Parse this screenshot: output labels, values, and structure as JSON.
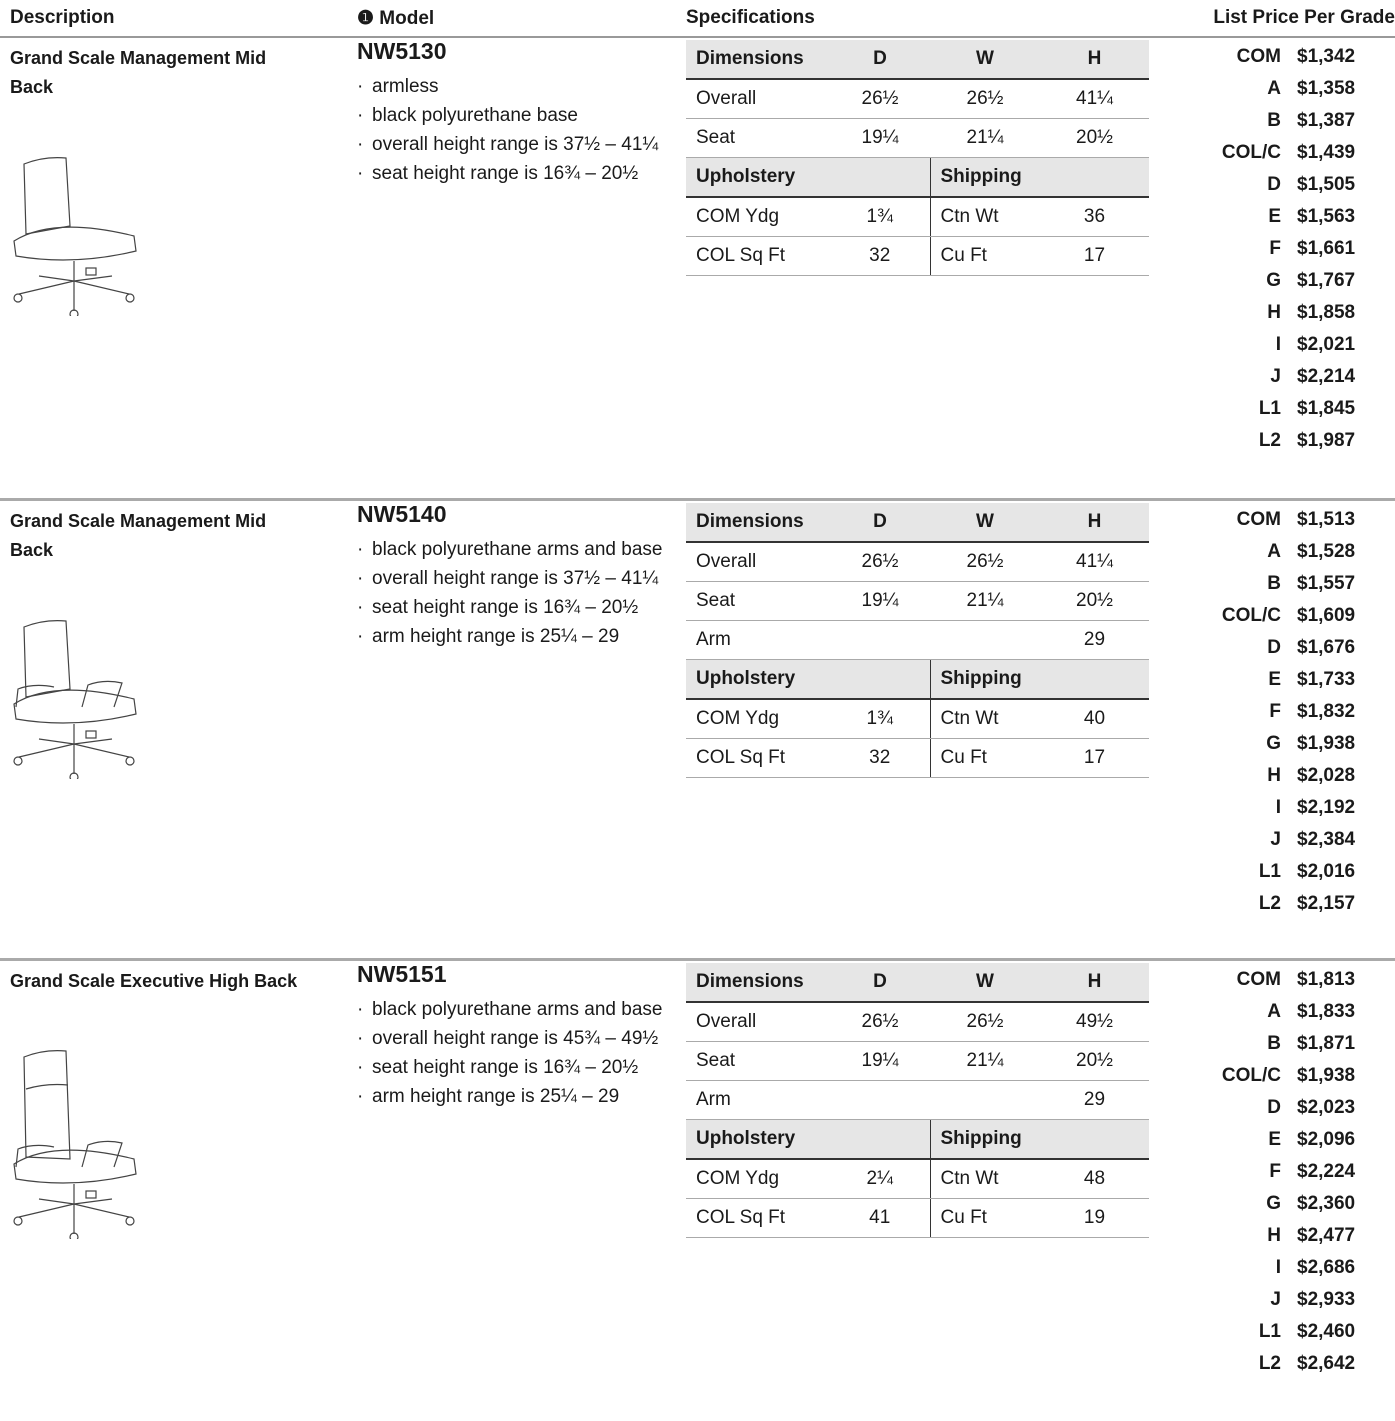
{
  "header": {
    "description": "Description",
    "model": "❶ Model",
    "specifications": "Specifications",
    "price": "List Price Per Grade"
  },
  "products": [
    {
      "description": "Grand Scale Management Mid Back",
      "model": "NW5130",
      "features": [
        "armless",
        "black polyurethane base",
        "overall height range is 37½ – 41¼",
        "seat height range is 16¾ – 20½"
      ],
      "dimensions": {
        "header": [
          "Dimensions",
          "D",
          "W",
          "H"
        ],
        "rows": [
          [
            "Overall",
            "26½",
            "26½",
            "41¼"
          ],
          [
            "Seat",
            "19¼",
            "21¼",
            "20½"
          ]
        ]
      },
      "upholstery": {
        "header": [
          "Upholstery",
          "Shipping"
        ],
        "rows": [
          [
            "COM Ydg",
            "1¾",
            "Ctn Wt",
            "36"
          ],
          [
            "COL Sq Ft",
            "32",
            "Cu Ft",
            "17"
          ]
        ]
      },
      "prices": [
        [
          "COM",
          "$1,342"
        ],
        [
          "A",
          "$1,358"
        ],
        [
          "B",
          "$1,387"
        ],
        [
          "COL/C",
          "$1,439"
        ],
        [
          "D",
          "$1,505"
        ],
        [
          "E",
          "$1,563"
        ],
        [
          "F",
          "$1,661"
        ],
        [
          "G",
          "$1,767"
        ],
        [
          "H",
          "$1,858"
        ],
        [
          "I",
          "$2,021"
        ],
        [
          "J",
          "$2,214"
        ],
        [
          "L1",
          "$1,845"
        ],
        [
          "L2",
          "$1,987"
        ]
      ]
    },
    {
      "description": "Grand Scale Management Mid Back",
      "model": "NW5140",
      "features": [
        "black polyurethane arms and base",
        "overall height range is 37½ – 41¼",
        "seat height range is 16¾ – 20½",
        "arm height range is 25¼ – 29"
      ],
      "dimensions": {
        "header": [
          "Dimensions",
          "D",
          "W",
          "H"
        ],
        "rows": [
          [
            "Overall",
            "26½",
            "26½",
            "41¼"
          ],
          [
            "Seat",
            "19¼",
            "21¼",
            "20½"
          ],
          [
            "Arm",
            null,
            null,
            "29"
          ]
        ]
      },
      "upholstery": {
        "header": [
          "Upholstery",
          "Shipping"
        ],
        "rows": [
          [
            "COM Ydg",
            "1¾",
            "Ctn Wt",
            "40"
          ],
          [
            "COL Sq Ft",
            "32",
            "Cu Ft",
            "17"
          ]
        ]
      },
      "prices": [
        [
          "COM",
          "$1,513"
        ],
        [
          "A",
          "$1,528"
        ],
        [
          "B",
          "$1,557"
        ],
        [
          "COL/C",
          "$1,609"
        ],
        [
          "D",
          "$1,676"
        ],
        [
          "E",
          "$1,733"
        ],
        [
          "F",
          "$1,832"
        ],
        [
          "G",
          "$1,938"
        ],
        [
          "H",
          "$2,028"
        ],
        [
          "I",
          "$2,192"
        ],
        [
          "J",
          "$2,384"
        ],
        [
          "L1",
          "$2,016"
        ],
        [
          "L2",
          "$2,157"
        ]
      ]
    },
    {
      "description": "Grand Scale Executive High Back",
      "model": "NW5151",
      "features": [
        "black polyurethane arms and base",
        "overall height range is 45¾ – 49½",
        "seat height range is 16¾ – 20½",
        "arm height range is 25¼ – 29"
      ],
      "dimensions": {
        "header": [
          "Dimensions",
          "D",
          "W",
          "H"
        ],
        "rows": [
          [
            "Overall",
            "26½",
            "26½",
            "49½"
          ],
          [
            "Seat",
            "19¼",
            "21¼",
            "20½"
          ],
          [
            "Arm",
            null,
            null,
            "29"
          ]
        ]
      },
      "upholstery": {
        "header": [
          "Upholstery",
          "Shipping"
        ],
        "rows": [
          [
            "COM Ydg",
            "2¼",
            "Ctn Wt",
            "48"
          ],
          [
            "COL Sq Ft",
            "41",
            "Cu Ft",
            "19"
          ]
        ]
      },
      "prices": [
        [
          "COM",
          "$1,813"
        ],
        [
          "A",
          "$1,833"
        ],
        [
          "B",
          "$1,871"
        ],
        [
          "COL/C",
          "$1,938"
        ],
        [
          "D",
          "$2,023"
        ],
        [
          "E",
          "$2,096"
        ],
        [
          "F",
          "$2,224"
        ],
        [
          "G",
          "$2,360"
        ],
        [
          "H",
          "$2,477"
        ],
        [
          "I",
          "$2,686"
        ],
        [
          "J",
          "$2,933"
        ],
        [
          "L1",
          "$2,460"
        ],
        [
          "L2",
          "$2,642"
        ]
      ]
    }
  ]
}
